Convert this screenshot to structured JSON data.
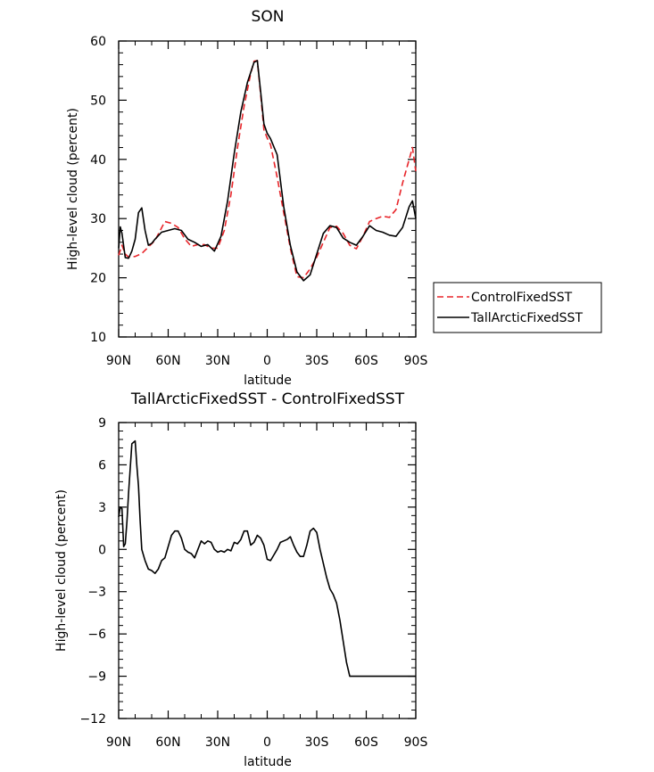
{
  "chart_data": [
    {
      "type": "line",
      "title": "SON",
      "xlabel": "latitude",
      "ylabel": "High-level cloud (percent)",
      "xlim": [
        90,
        -90
      ],
      "ylim": [
        10,
        60
      ],
      "x_ticks": [
        {
          "value": 90,
          "label": "90N"
        },
        {
          "value": 60,
          "label": "60N"
        },
        {
          "value": 30,
          "label": "30N"
        },
        {
          "value": 0,
          "label": "0"
        },
        {
          "value": -30,
          "label": "30S"
        },
        {
          "value": -60,
          "label": "60S"
        },
        {
          "value": -90,
          "label": "90S"
        }
      ],
      "y_ticks": [
        10,
        20,
        30,
        40,
        50,
        60
      ],
      "legend": [
        {
          "name": "ControlFixedSST",
          "color": "#e8252a",
          "dash": "dashed"
        },
        {
          "name": "TallArcticFixedSST",
          "color": "#000000",
          "dash": "solid"
        }
      ],
      "series": [
        {
          "name": "ControlFixedSST",
          "color": "#e8252a",
          "dash": "dashed",
          "x": [
            90,
            88,
            86,
            84,
            80,
            76,
            72,
            68,
            62,
            58,
            54,
            50,
            46,
            42,
            38,
            34,
            30,
            26,
            22,
            18,
            14,
            10,
            8,
            6,
            4,
            2,
            0,
            -2,
            -6,
            -10,
            -14,
            -18,
            -22,
            -26,
            -30,
            -34,
            -38,
            -42,
            -46,
            -50,
            -54,
            -58,
            -62,
            -66,
            -70,
            -74,
            -78,
            -82,
            -86,
            -88,
            -90
          ],
          "y": [
            23.8,
            25.5,
            24.0,
            23.5,
            23.6,
            24.1,
            25.2,
            26.3,
            29.5,
            29.2,
            28.5,
            26.6,
            25.3,
            25.6,
            25.6,
            25.0,
            25.0,
            28.0,
            34.0,
            42.0,
            49.0,
            54.5,
            56.6,
            56.7,
            51.0,
            45.0,
            43.6,
            42.5,
            37.0,
            31.0,
            25.0,
            20.2,
            20.0,
            21.5,
            23.5,
            26.0,
            28.5,
            28.7,
            27.5,
            25.5,
            24.9,
            27.0,
            29.5,
            30.0,
            30.4,
            30.2,
            31.5,
            36.0,
            40.0,
            42.0,
            38.0
          ]
        },
        {
          "name": "TallArcticFixedSST",
          "color": "#000000",
          "dash": "solid",
          "x": [
            90,
            89,
            88,
            86,
            84,
            82,
            80,
            78,
            76,
            74,
            72,
            70,
            68,
            64,
            60,
            56,
            52,
            48,
            44,
            40,
            36,
            32,
            28,
            24,
            20,
            16,
            12,
            8,
            6,
            4,
            2,
            0,
            -2,
            -6,
            -10,
            -14,
            -18,
            -22,
            -26,
            -30,
            -34,
            -38,
            -42,
            -46,
            -50,
            -54,
            -58,
            -62,
            -66,
            -70,
            -74,
            -78,
            -82,
            -86,
            -88,
            -90
          ],
          "y": [
            25.0,
            28.6,
            27.5,
            23.4,
            23.3,
            24.5,
            26.5,
            31.0,
            31.8,
            28.0,
            25.5,
            25.8,
            26.5,
            27.7,
            28.0,
            28.3,
            28.0,
            26.5,
            26.0,
            25.3,
            25.6,
            24.5,
            27.0,
            33.0,
            41.0,
            48.0,
            53.0,
            56.4,
            56.7,
            51.5,
            46.0,
            44.4,
            43.5,
            40.8,
            32.0,
            25.5,
            21.0,
            19.5,
            20.5,
            24.0,
            27.5,
            28.8,
            28.5,
            26.7,
            26.0,
            25.5,
            27.0,
            28.8,
            28.0,
            27.7,
            27.2,
            27.0,
            28.5,
            32.0,
            33.0,
            30.0
          ]
        }
      ]
    },
    {
      "type": "line",
      "title": "TallArcticFixedSST - ControlFixedSST",
      "xlabel": "latitude",
      "ylabel": "High-level cloud (percent)",
      "xlim": [
        90,
        -90
      ],
      "ylim": [
        -12,
        9
      ],
      "x_ticks": [
        {
          "value": 90,
          "label": "90N"
        },
        {
          "value": 60,
          "label": "60N"
        },
        {
          "value": 30,
          "label": "30N"
        },
        {
          "value": 0,
          "label": "0"
        },
        {
          "value": -30,
          "label": "30S"
        },
        {
          "value": -60,
          "label": "60S"
        },
        {
          "value": -90,
          "label": "90S"
        }
      ],
      "y_ticks": [
        -12,
        -9,
        -6,
        -3,
        0,
        3,
        6,
        9
      ],
      "series": [
        {
          "name": "difference",
          "color": "#000000",
          "dash": "solid",
          "x": [
            90,
            89,
            88,
            87,
            86,
            85,
            84,
            82,
            80,
            79,
            78,
            77,
            76,
            74,
            72,
            70,
            68,
            66,
            64,
            62,
            60,
            58,
            56,
            54,
            52,
            50,
            48,
            46,
            44,
            42,
            40,
            38,
            36,
            34,
            32,
            30,
            28,
            26,
            24,
            22,
            20,
            18,
            16,
            14,
            12,
            10,
            8,
            6,
            4,
            2,
            0,
            -2,
            -4,
            -6,
            -8,
            -10,
            -12,
            -14,
            -16,
            -18,
            -20,
            -22,
            -24,
            -26,
            -28,
            -30,
            -32,
            -34,
            -36,
            -38,
            -40,
            -42,
            -44,
            -46,
            -48,
            -50,
            -52,
            -54,
            -56,
            -58,
            -60,
            -62,
            -64,
            -66,
            -68,
            -70,
            -72,
            -74,
            -76,
            -78,
            -80,
            -82,
            -84,
            -86,
            -88,
            -90
          ],
          "y": [
            2.3,
            3.0,
            2.9,
            0.2,
            0.4,
            2.0,
            4.0,
            7.5,
            7.7,
            6.0,
            4.5,
            2.0,
            0.0,
            -0.8,
            -1.4,
            -1.5,
            -1.7,
            -1.4,
            -0.8,
            -0.6,
            0.2,
            1.0,
            1.3,
            1.3,
            0.8,
            0.0,
            -0.2,
            -0.3,
            -0.6,
            0.0,
            0.6,
            0.4,
            0.6,
            0.5,
            0.0,
            -0.2,
            -0.1,
            -0.2,
            0.0,
            -0.1,
            0.5,
            0.4,
            0.7,
            1.3,
            1.3,
            0.3,
            0.5,
            1.0,
            0.8,
            0.3,
            -0.7,
            -0.8,
            -0.4,
            0.0,
            0.5,
            0.6,
            0.7,
            0.9,
            0.3,
            -0.2,
            -0.5,
            -0.5,
            0.3,
            1.3,
            1.5,
            1.2,
            0.0,
            -1.0,
            -2.0,
            -2.8,
            -3.2,
            -3.8,
            -5.0,
            -6.5,
            -8.0,
            -9.0,
            -9.0,
            -9.0,
            -9.0,
            -9.0,
            -9.0,
            -9.0,
            -9.0,
            -9.0,
            -9.0,
            -9.0,
            -9.0,
            -9.0,
            -9.0,
            -9.0,
            -9.0,
            -9.0,
            -9.0,
            -9.0,
            -9.0,
            -9.0
          ]
        }
      ]
    }
  ]
}
